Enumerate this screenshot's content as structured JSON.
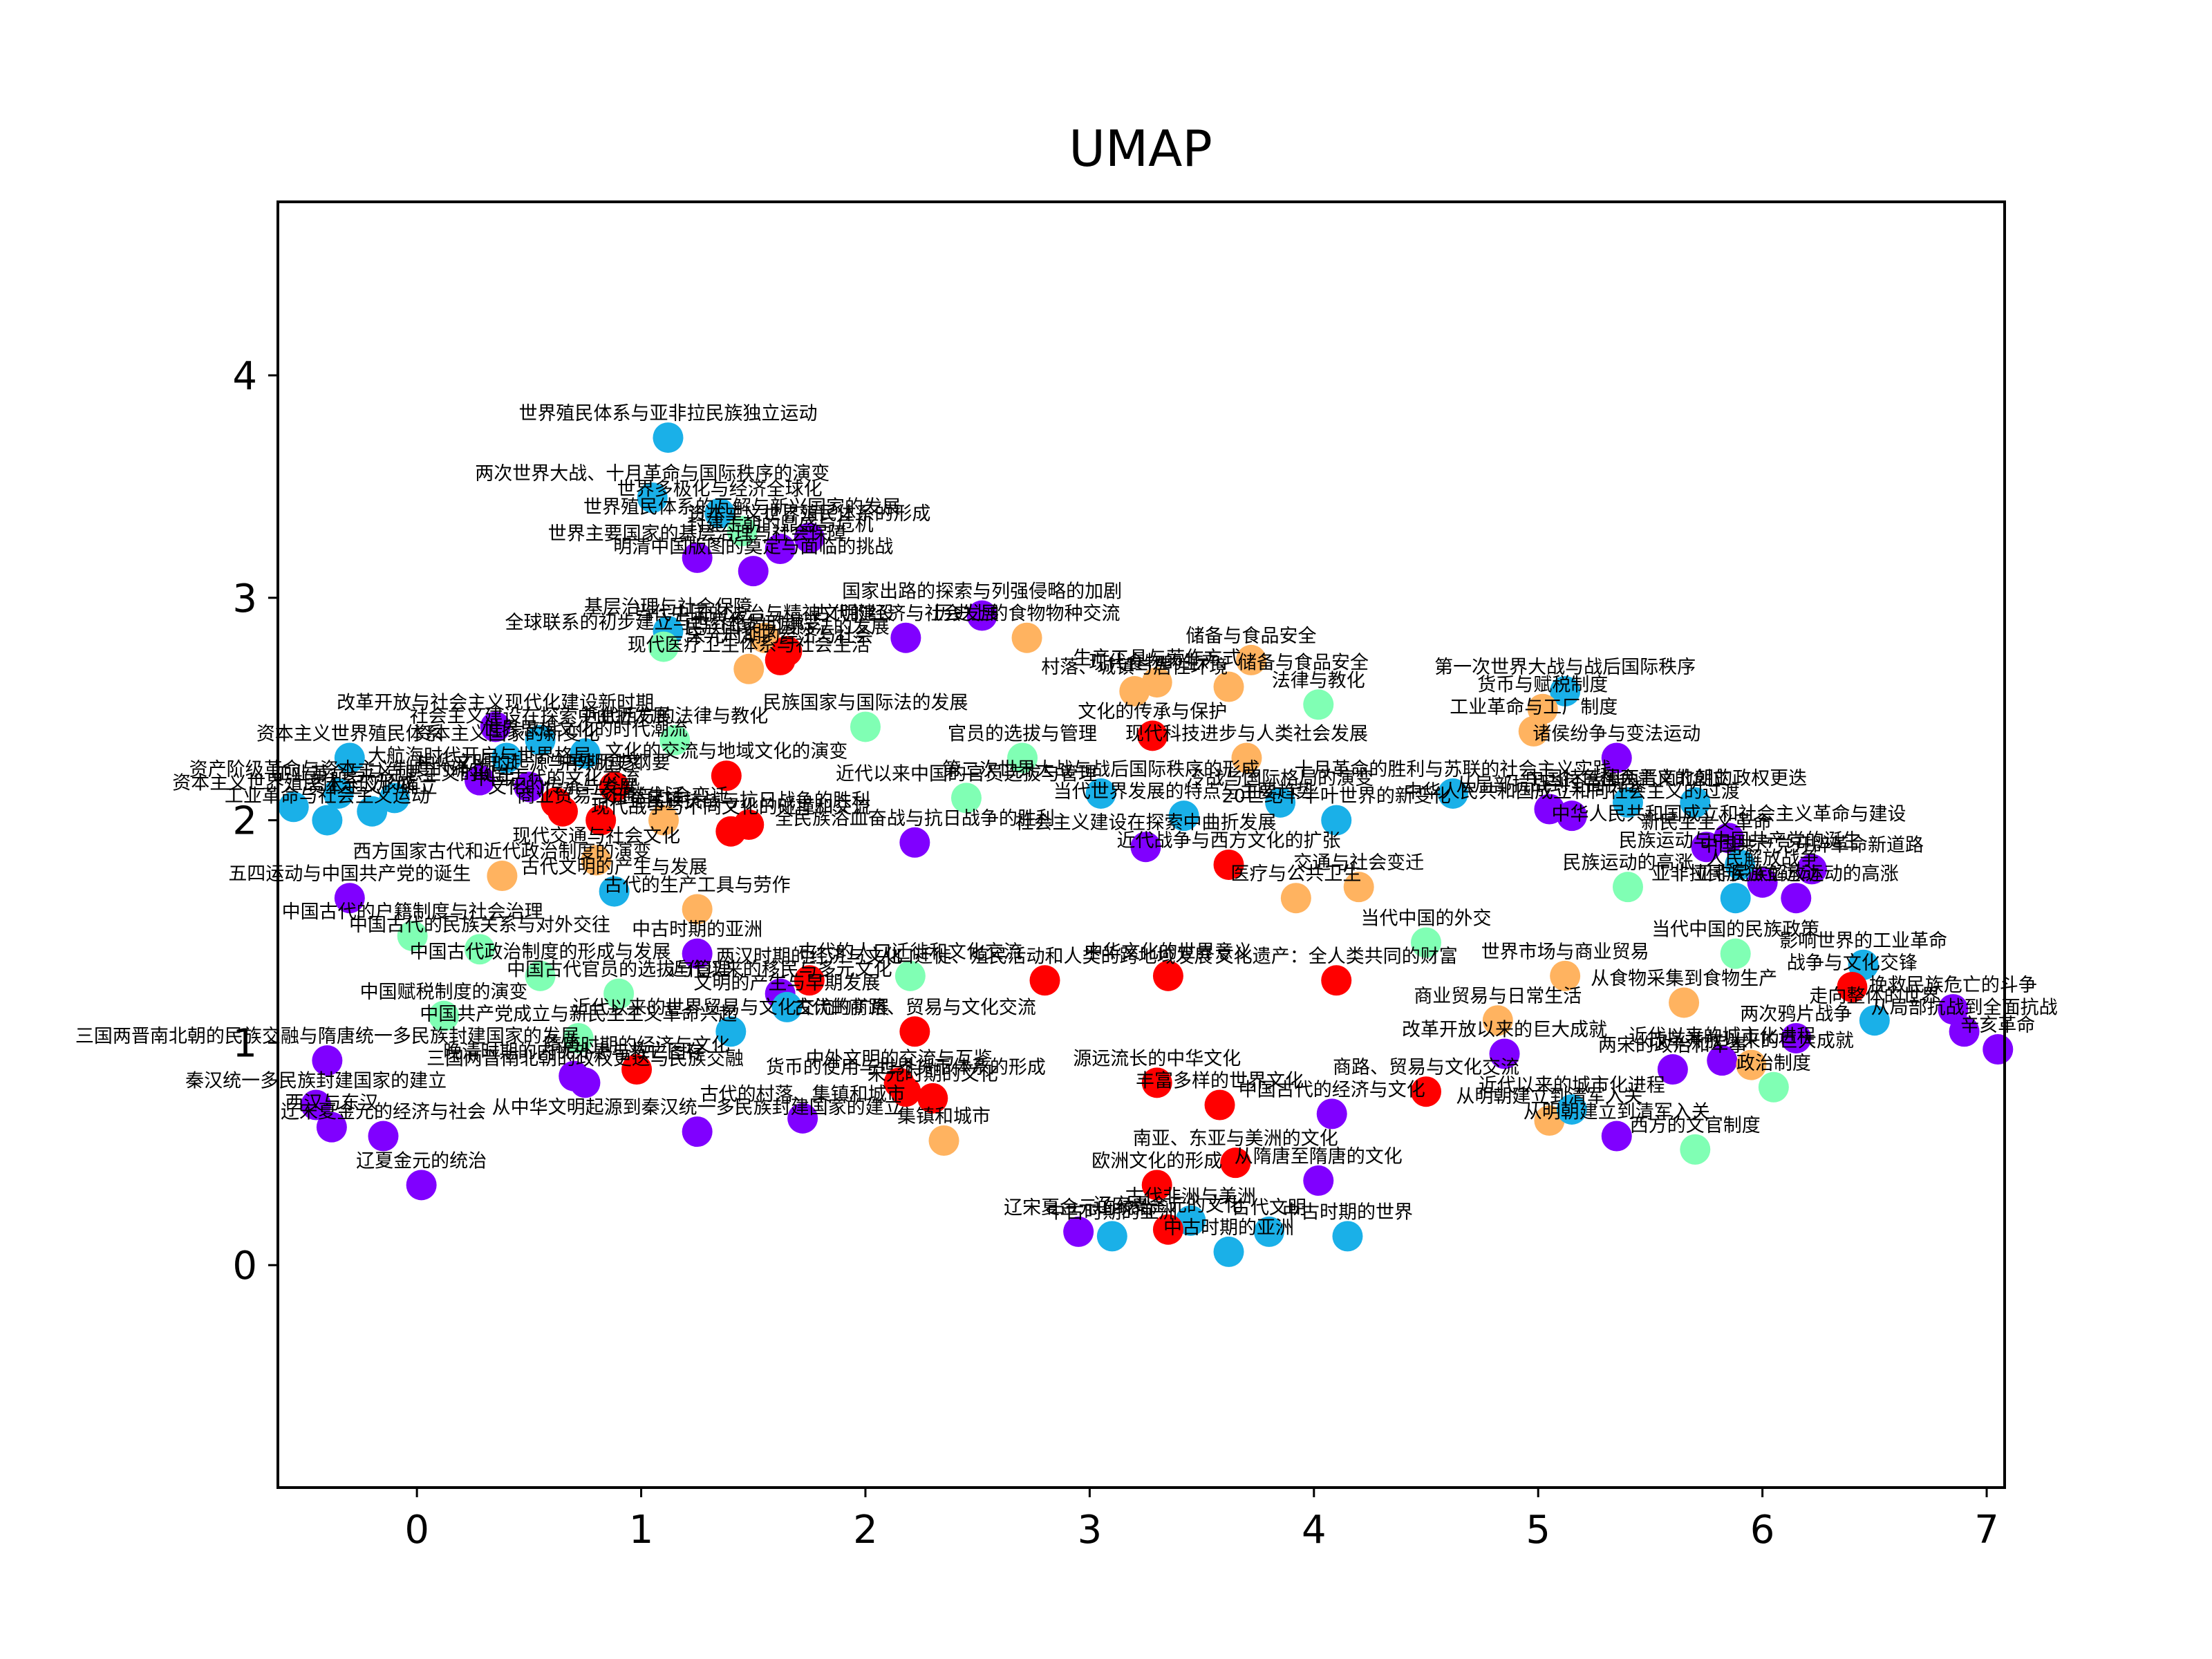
{
  "chart_data": {
    "type": "scatter",
    "title": "UMAP",
    "xlabel": "",
    "ylabel": "",
    "xlim": [
      -0.62,
      7.08
    ],
    "ylim": [
      -1.0,
      4.78
    ],
    "xticks": [
      0,
      1,
      2,
      3,
      4,
      5,
      6,
      7
    ],
    "yticks": [
      0,
      1,
      2,
      3,
      4
    ],
    "grid": false,
    "legend": "none",
    "colors": {
      "red": "#ff0000",
      "orange": "#ffb360",
      "teal": "#80ffb4",
      "blue": "#1ab0e8",
      "purple": "#8000ff"
    },
    "points": [
      {
        "x": 1.12,
        "y": 3.72,
        "c": "blue",
        "label": "世界殖民体系与亚非拉民族独立运动"
      },
      {
        "x": 1.05,
        "y": 3.45,
        "c": "blue",
        "label": "两次世界大战、十月革命与国际秩序的演变"
      },
      {
        "x": 1.35,
        "y": 3.38,
        "c": "blue",
        "label": "世界多极化与经济全球化"
      },
      {
        "x": 1.45,
        "y": 3.3,
        "c": "teal",
        "label": "世界殖民体系的瓦解与新兴国家的发展"
      },
      {
        "x": 1.75,
        "y": 3.27,
        "c": "purple",
        "label": "资本主义世界殖民体系的形成"
      },
      {
        "x": 1.62,
        "y": 3.22,
        "c": "purple",
        "label": "封建王朝的鼎盛与危机"
      },
      {
        "x": 1.25,
        "y": 3.18,
        "c": "purple",
        "label": "世界主要国家的基层治理与社会保障"
      },
      {
        "x": 1.5,
        "y": 3.12,
        "c": "purple",
        "label": "明清中国版图的奠定与面临的挑战"
      },
      {
        "x": 1.12,
        "y": 2.85,
        "c": "blue",
        "label": "基层治理与社会保障"
      },
      {
        "x": 1.55,
        "y": 2.82,
        "c": "orange",
        "label": "当代中国的法治与精神文明建设"
      },
      {
        "x": 2.52,
        "y": 2.92,
        "c": "purple",
        "label": "国家出路的探索与列强侵略的加剧"
      },
      {
        "x": 2.18,
        "y": 2.82,
        "c": "purple",
        "label": "古代的经济与社会发展"
      },
      {
        "x": 1.1,
        "y": 2.78,
        "c": "teal",
        "label": "全球联系的初步建立与世界格局的演变"
      },
      {
        "x": 1.65,
        "y": 2.76,
        "c": "red",
        "label": "民族国家与国际法的发展"
      },
      {
        "x": 1.62,
        "y": 2.72,
        "c": "red",
        "label": "宋元时期的经济与社会"
      },
      {
        "x": 1.48,
        "y": 2.68,
        "c": "orange",
        "label": "现代医疗卫生体系与社会生活"
      },
      {
        "x": 2.72,
        "y": 2.82,
        "c": "orange",
        "label": "历史上的食物物种交流"
      },
      {
        "x": 3.72,
        "y": 2.72,
        "c": "orange",
        "label": "储备与食品安全"
      },
      {
        "x": 3.3,
        "y": 2.62,
        "c": "orange",
        "label": "生产工具与劳作方式"
      },
      {
        "x": 3.62,
        "y": 2.6,
        "c": "orange",
        "label": "现代食物的生产、储备与食品安全"
      },
      {
        "x": 3.2,
        "y": 2.58,
        "c": "orange",
        "label": "村落、城镇与居住环境"
      },
      {
        "x": 4.02,
        "y": 2.52,
        "c": "teal",
        "label": "法律与教化"
      },
      {
        "x": 5.12,
        "y": 2.58,
        "c": "blue",
        "label": "第一次世界大战与战后国际秩序"
      },
      {
        "x": 5.02,
        "y": 2.5,
        "c": "orange",
        "label": "货币与赋税制度"
      },
      {
        "x": 4.98,
        "y": 2.4,
        "c": "orange",
        "label": "工业革命与工厂制度"
      },
      {
        "x": 5.35,
        "y": 2.28,
        "c": "purple",
        "label": "诸侯纷争与变法运动"
      },
      {
        "x": 3.28,
        "y": 2.38,
        "c": "red",
        "label": "文化的传承与保护"
      },
      {
        "x": 3.7,
        "y": 2.28,
        "c": "orange",
        "label": "现代科技进步与人类社会发展"
      },
      {
        "x": 2.7,
        "y": 2.28,
        "c": "teal",
        "label": "官员的选拔与管理"
      },
      {
        "x": 0.35,
        "y": 2.42,
        "c": "purple",
        "label": "改革开放与社会主义现代化建设新时期"
      },
      {
        "x": 0.55,
        "y": 2.36,
        "c": "blue",
        "label": "社会主义建设在探索中曲折发展"
      },
      {
        "x": 1.15,
        "y": 2.36,
        "c": "teal",
        "label": "近代西方的法律与教化"
      },
      {
        "x": 2.0,
        "y": 2.42,
        "c": "teal",
        "label": "民族国家与国际法的发展"
      },
      {
        "x": 0.75,
        "y": 2.3,
        "c": "blue",
        "label": "世界思想文化的时代潮流"
      },
      {
        "x": 0.4,
        "y": 2.28,
        "c": "blue",
        "label": "资本主义国家的新变化"
      },
      {
        "x": -0.3,
        "y": 2.28,
        "c": "blue",
        "label": "资本主义世界殖民体系"
      },
      {
        "x": 1.38,
        "y": 2.2,
        "c": "red",
        "label": "文化的交流与地域文化的演变"
      },
      {
        "x": 0.88,
        "y": 2.15,
        "c": "red",
        "label": "中外历史纲要"
      },
      {
        "x": 0.28,
        "y": 2.18,
        "c": "purple",
        "label": "大航海时代开启与世界格局"
      },
      {
        "x": 0.5,
        "y": 2.15,
        "c": "purple",
        "label": "中华文明的起源与早期国家"
      },
      {
        "x": -0.35,
        "y": 2.12,
        "c": "blue",
        "label": "资产阶级革命与资本主义制度的确立"
      },
      {
        "x": -0.1,
        "y": 2.1,
        "c": "blue",
        "label": "工业革命与马克思主义的诞生"
      },
      {
        "x": -0.55,
        "y": 2.06,
        "c": "blue",
        "label": "资本主义世界殖民体系的形成"
      },
      {
        "x": -0.4,
        "y": 2.0,
        "c": "blue",
        "label": "工业革命与社会主义运动"
      },
      {
        "x": -0.2,
        "y": 2.04,
        "c": "blue",
        "label": "资本主义的确立"
      },
      {
        "x": 0.62,
        "y": 2.08,
        "c": "red",
        "label": "中国古代的文化交流"
      },
      {
        "x": 0.65,
        "y": 2.04,
        "c": "red",
        "label": "文化的传承与发展"
      },
      {
        "x": 0.82,
        "y": 2.0,
        "c": "red",
        "label": "商业贸易与日常生活"
      },
      {
        "x": 1.1,
        "y": 2.0,
        "c": "orange",
        "label": "交通与社会变迁"
      },
      {
        "x": 1.4,
        "y": 1.95,
        "c": "red",
        "label": "现代战争与不同文化的碰撞和交流"
      },
      {
        "x": 1.48,
        "y": 1.98,
        "c": "red",
        "label": "全民族抗战与抗日战争的胜利"
      },
      {
        "x": 2.45,
        "y": 2.1,
        "c": "teal",
        "label": "近代以来中国的官员选拔与管理"
      },
      {
        "x": 2.22,
        "y": 1.9,
        "c": "purple",
        "label": "全民族浴血奋战与抗日战争的胜利"
      },
      {
        "x": 3.05,
        "y": 2.12,
        "c": "blue",
        "label": "第二次世界大战与战后国际秩序的形成"
      },
      {
        "x": 3.42,
        "y": 2.02,
        "c": "blue",
        "label": "当代世界发展的特点与主要趋势"
      },
      {
        "x": 3.85,
        "y": 2.08,
        "c": "blue",
        "label": "冷战与国际格局的演变"
      },
      {
        "x": 4.1,
        "y": 2.0,
        "c": "blue",
        "label": "20世纪下半叶世界的新变化"
      },
      {
        "x": 3.25,
        "y": 1.88,
        "c": "purple",
        "label": "社会主义建设在探索中曲折发展"
      },
      {
        "x": 3.62,
        "y": 1.8,
        "c": "red",
        "label": "近代战争与西方文化的扩张"
      },
      {
        "x": 4.2,
        "y": 1.7,
        "c": "orange",
        "label": "交通与社会变迁"
      },
      {
        "x": 3.92,
        "y": 1.65,
        "c": "orange",
        "label": "医疗与公共卫生"
      },
      {
        "x": 4.62,
        "y": 2.12,
        "c": "blue",
        "label": "十月革命的胜利与苏联的社会主义实践"
      },
      {
        "x": 5.05,
        "y": 2.05,
        "c": "purple",
        "label": "从局部抗战到全面抗战"
      },
      {
        "x": 5.15,
        "y": 2.02,
        "c": "purple",
        "label": "中华人民共和国成立和向社会主义的过渡"
      },
      {
        "x": 5.4,
        "y": 2.08,
        "c": "blue",
        "label": "中国特色社会主义的创立"
      },
      {
        "x": 5.7,
        "y": 2.08,
        "c": "blue",
        "label": "三国两晋南北朝的政权更迭"
      },
      {
        "x": 5.85,
        "y": 1.92,
        "c": "purple",
        "label": "中华人民共和国成立和社会主义革命与建设"
      },
      {
        "x": 5.75,
        "y": 1.88,
        "c": "purple",
        "label": "新民主主义革命"
      },
      {
        "x": 5.9,
        "y": 1.8,
        "c": "blue",
        "label": "民族运动与中国共产党的诞生"
      },
      {
        "x": 6.22,
        "y": 1.78,
        "c": "purple",
        "label": "中国共产党开辟革命新道路"
      },
      {
        "x": 6.0,
        "y": 1.72,
        "c": "purple",
        "label": "人民解放战争"
      },
      {
        "x": 5.88,
        "y": 1.65,
        "c": "blue",
        "label": "亚非拉民族独立运动"
      },
      {
        "x": 6.15,
        "y": 1.65,
        "c": "purple",
        "label": "亚非民族解放运动的高涨"
      },
      {
        "x": 5.4,
        "y": 1.7,
        "c": "teal",
        "label": "民族运动的高涨"
      },
      {
        "x": 4.5,
        "y": 1.45,
        "c": "teal",
        "label": "当代中国的外交"
      },
      {
        "x": 5.88,
        "y": 1.4,
        "c": "teal",
        "label": "当代中国的民族政策"
      },
      {
        "x": 6.45,
        "y": 1.35,
        "c": "blue",
        "label": "影响世界的工业革命"
      },
      {
        "x": 6.4,
        "y": 1.25,
        "c": "red",
        "label": "战争与文化交锋"
      },
      {
        "x": 5.12,
        "y": 1.3,
        "c": "orange",
        "label": "世界市场与商业贸易"
      },
      {
        "x": 5.65,
        "y": 1.18,
        "c": "orange",
        "label": "从食物采集到食物生产"
      },
      {
        "x": 4.82,
        "y": 1.1,
        "c": "orange",
        "label": "商业贸易与日常生活"
      },
      {
        "x": 4.85,
        "y": 0.95,
        "c": "purple",
        "label": "改革开放以来的巨大成就"
      },
      {
        "x": 6.85,
        "y": 1.15,
        "c": "purple",
        "label": "挽救民族危亡的斗争"
      },
      {
        "x": 6.5,
        "y": 1.1,
        "c": "blue",
        "label": "走向整体的世界"
      },
      {
        "x": 6.9,
        "y": 1.05,
        "c": "purple",
        "label": "从局部抗战到全面抗战"
      },
      {
        "x": 7.05,
        "y": 0.97,
        "c": "purple",
        "label": "辛亥革命"
      },
      {
        "x": 6.15,
        "y": 1.02,
        "c": "purple",
        "label": "两次鸦片战争"
      },
      {
        "x": 5.82,
        "y": 0.92,
        "c": "purple",
        "label": "近代以来的城市化进程"
      },
      {
        "x": 5.6,
        "y": 0.88,
        "c": "purple",
        "label": "两宋的政治和军事"
      },
      {
        "x": 5.95,
        "y": 0.9,
        "c": "orange",
        "label": "改革开放以来的巨大成就"
      },
      {
        "x": 6.05,
        "y": 0.8,
        "c": "teal",
        "label": "政治制度"
      },
      {
        "x": 5.35,
        "y": 0.58,
        "c": "purple",
        "label": "从明朝建立到清军入关"
      },
      {
        "x": 5.7,
        "y": 0.52,
        "c": "teal",
        "label": "西方的文官制度"
      },
      {
        "x": 5.05,
        "y": 0.65,
        "c": "orange",
        "label": "从明朝建立到清军入关"
      },
      {
        "x": 5.15,
        "y": 0.7,
        "c": "blue",
        "label": "近代以来的城市化进程"
      },
      {
        "x": 4.5,
        "y": 0.78,
        "c": "red",
        "label": "商路、贸易与文化交流"
      },
      {
        "x": 3.58,
        "y": 0.72,
        "c": "red",
        "label": "丰富多样的世界文化"
      },
      {
        "x": 4.08,
        "y": 0.68,
        "c": "purple",
        "label": "中国古代的经济与文化"
      },
      {
        "x": 3.3,
        "y": 0.82,
        "c": "red",
        "label": "源远流长的中华文化"
      },
      {
        "x": 3.65,
        "y": 0.46,
        "c": "red",
        "label": "南亚、东亚与美洲的文化"
      },
      {
        "x": 3.3,
        "y": 0.36,
        "c": "red",
        "label": "欧洲文化的形成"
      },
      {
        "x": 4.02,
        "y": 0.38,
        "c": "purple",
        "label": "从隋唐至隋唐的文化"
      },
      {
        "x": 3.45,
        "y": 0.2,
        "c": "blue",
        "label": "古代非洲与美洲"
      },
      {
        "x": 3.8,
        "y": 0.15,
        "c": "blue",
        "label": "古代文明"
      },
      {
        "x": 3.35,
        "y": 0.16,
        "c": "red",
        "label": "辽宋夏金元的文化"
      },
      {
        "x": 3.62,
        "y": 0.06,
        "c": "blue",
        "label": "中古时期的亚洲"
      },
      {
        "x": 4.15,
        "y": 0.13,
        "c": "blue",
        "label": "中古时期的世界"
      },
      {
        "x": 2.95,
        "y": 0.15,
        "c": "purple",
        "label": "辽宋夏金元的统治"
      },
      {
        "x": 3.1,
        "y": 0.13,
        "c": "blue",
        "label": "中古时期的亚洲"
      },
      {
        "x": 2.8,
        "y": 1.28,
        "c": "red",
        "label": "人口迁徙、殖民活动和人类的跨地域发展"
      },
      {
        "x": 3.35,
        "y": 1.3,
        "c": "red",
        "label": "中华文化的世界意义"
      },
      {
        "x": 4.1,
        "y": 1.28,
        "c": "red",
        "label": "文化遗产：全人类共同的财富"
      },
      {
        "x": 2.2,
        "y": 1.3,
        "c": "teal",
        "label": "古代的人口迁徙和文化交流"
      },
      {
        "x": 1.75,
        "y": 1.28,
        "c": "red",
        "label": "两汉时期的经济与文化"
      },
      {
        "x": 1.62,
        "y": 1.22,
        "c": "purple",
        "label": "近代以来的移民与多元文化"
      },
      {
        "x": 1.65,
        "y": 1.16,
        "c": "blue",
        "label": "文明的产生与早期发展"
      },
      {
        "x": 1.25,
        "y": 1.4,
        "c": "purple",
        "label": "中古时期的亚洲"
      },
      {
        "x": 1.25,
        "y": 1.6,
        "c": "orange",
        "label": "古代的生产工具与劳作"
      },
      {
        "x": 0.88,
        "y": 1.68,
        "c": "blue",
        "label": "古代文明的产生与发展"
      },
      {
        "x": 0.38,
        "y": 1.75,
        "c": "orange",
        "label": "西方国家古代和近代政治制度的演变"
      },
      {
        "x": 0.8,
        "y": 1.82,
        "c": "orange",
        "label": "现代交通与社会文化"
      },
      {
        "x": -0.3,
        "y": 1.65,
        "c": "purple",
        "label": "五四运动与中国共产党的诞生"
      },
      {
        "x": -0.02,
        "y": 1.48,
        "c": "teal",
        "label": "中国古代的户籍制度与社会治理"
      },
      {
        "x": 0.28,
        "y": 1.42,
        "c": "teal",
        "label": "中国古代的民族关系与对外交往"
      },
      {
        "x": 0.55,
        "y": 1.3,
        "c": "teal",
        "label": "中国古代政治制度的形成与发展"
      },
      {
        "x": 0.9,
        "y": 1.22,
        "c": "teal",
        "label": "中国古代官员的选拔与管理"
      },
      {
        "x": 0.12,
        "y": 1.12,
        "c": "teal",
        "label": "中国赋税制度的演变"
      },
      {
        "x": 0.72,
        "y": 1.02,
        "c": "teal",
        "label": "中国共产党成立与新民主主义革命兴起"
      },
      {
        "x": 1.4,
        "y": 1.05,
        "c": "blue",
        "label": "近代以来的世界贸易与文化交流的扩展"
      },
      {
        "x": 2.22,
        "y": 1.05,
        "c": "red",
        "label": "古代的商路、贸易与文化交流"
      },
      {
        "x": -0.4,
        "y": 0.92,
        "c": "purple",
        "label": "三国两晋南北朝的民族交融与隋唐统一多民族封建国家的发展"
      },
      {
        "x": 0.7,
        "y": 0.85,
        "c": "purple",
        "label": "晚清时期的内忧外患与救亡图存"
      },
      {
        "x": 0.75,
        "y": 0.82,
        "c": "purple",
        "label": "三国两晋南北朝的政权更迭与民族交融"
      },
      {
        "x": 0.98,
        "y": 0.88,
        "c": "red",
        "label": "隋唐时期的经济与文化"
      },
      {
        "x": 2.15,
        "y": 0.82,
        "c": "red",
        "label": "中外文明的交流与互鉴"
      },
      {
        "x": 2.18,
        "y": 0.78,
        "c": "red",
        "label": "货币的使用与世界货币体系的形成"
      },
      {
        "x": 2.3,
        "y": 0.75,
        "c": "red",
        "label": "宋元时期的文化"
      },
      {
        "x": -0.45,
        "y": 0.72,
        "c": "purple",
        "label": "秦汉统一多民族封建国家的建立"
      },
      {
        "x": -0.38,
        "y": 0.62,
        "c": "purple",
        "label": "西汉与东汉"
      },
      {
        "x": -0.15,
        "y": 0.58,
        "c": "purple",
        "label": "辽宋夏金元的经济与社会"
      },
      {
        "x": 1.25,
        "y": 0.6,
        "c": "purple",
        "label": "从中华文明起源到秦汉统一多民族封建国家的建立"
      },
      {
        "x": 1.72,
        "y": 0.66,
        "c": "purple",
        "label": "古代的村落、集镇和城市"
      },
      {
        "x": 2.35,
        "y": 0.56,
        "c": "orange",
        "label": "集镇和城市"
      },
      {
        "x": 0.02,
        "y": 0.36,
        "c": "purple",
        "label": "辽夏金元的统治"
      }
    ]
  }
}
